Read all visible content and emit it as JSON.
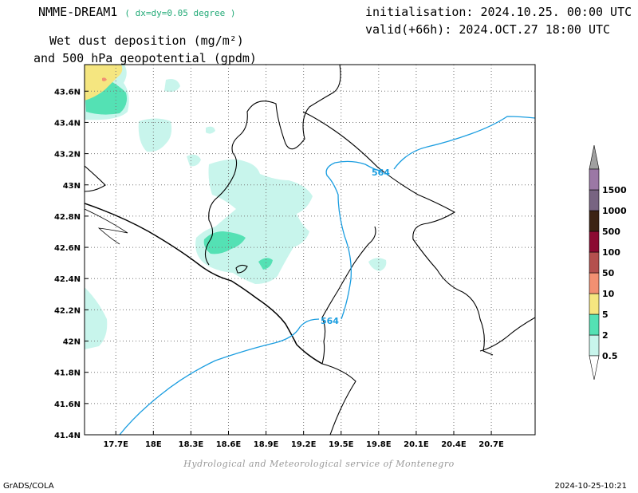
{
  "header": {
    "model_name": "NMME-DREAM1",
    "resolution": "( dx=dy=0.05 degree )",
    "variable_line1": "Wet dust deposition (mg/m²)",
    "variable_line2": "and 500 hPa geopotential (gpdm)",
    "init_label": "initialisation:",
    "init_value": "2024.10.25. 00:00 UTC",
    "valid_label": "valid(+66h):",
    "valid_value": "2024.OCT.27 18:00 UTC"
  },
  "credit": "Hydrological and Meteorological service of Montenegro",
  "footer": {
    "left": "GrADS/COLA",
    "right": "2024-10-25-10:21"
  },
  "map": {
    "lon_range": [
      17.45,
      21.05
    ],
    "lat_range": [
      41.4,
      43.77
    ],
    "lon_ticks": [
      "17.7E",
      "18E",
      "18.3E",
      "18.6E",
      "18.9E",
      "19.2E",
      "19.5E",
      "19.8E",
      "20.1E",
      "20.4E",
      "20.7E"
    ],
    "lon_tick_values": [
      17.7,
      18.0,
      18.3,
      18.6,
      18.9,
      19.2,
      19.5,
      19.8,
      20.1,
      20.4,
      20.7
    ],
    "lat_ticks": [
      "41.4N",
      "41.6N",
      "41.8N",
      "42N",
      "42.2N",
      "42.4N",
      "42.6N",
      "42.8N",
      "43N",
      "43.2N",
      "43.4N",
      "43.6N"
    ],
    "lat_tick_values": [
      41.4,
      41.6,
      41.8,
      42.0,
      42.2,
      42.4,
      42.6,
      42.8,
      43.0,
      43.2,
      43.4,
      43.6
    ],
    "grid": true,
    "contour_labels": [
      "564",
      "564"
    ],
    "colorbar": {
      "labels": [
        "0.5",
        "2",
        "5",
        "10",
        "50",
        "100",
        "500",
        "1000",
        "1500"
      ],
      "colors": [
        "#c8f5ec",
        "#54e1b4",
        "#f5e680",
        "#f29072",
        "#b4504e",
        "#8c0a32",
        "#3c2314",
        "#786482",
        "#9b78a5"
      ],
      "under_color": "#ffffff",
      "over_color": "#a0a0a0"
    }
  }
}
